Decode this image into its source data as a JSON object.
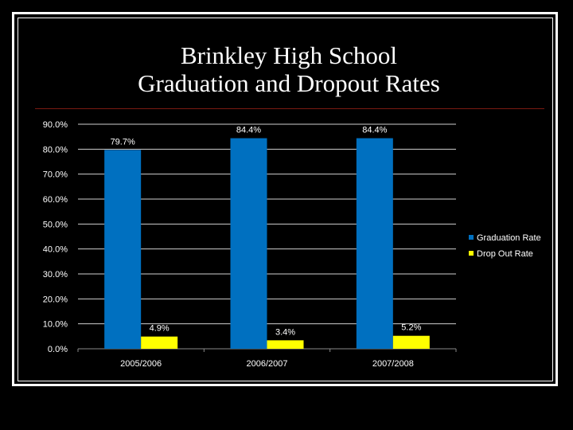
{
  "slide": {
    "title_line1": "Brinkley High School",
    "title_line2": "Graduation and Dropout Rates"
  },
  "chart_data": {
    "type": "bar",
    "title": "",
    "xlabel": "",
    "ylabel": "",
    "categories": [
      "2005/2006",
      "2006/2007",
      "2007/2008"
    ],
    "ylim": [
      0,
      90
    ],
    "yticks": [
      "0.0%",
      "10.0%",
      "20.0%",
      "30.0%",
      "40.0%",
      "50.0%",
      "60.0%",
      "70.0%",
      "80.0%",
      "90.0%"
    ],
    "grid": true,
    "legend_position": "right",
    "series": [
      {
        "name": "Graduation Rate",
        "color": "#0070c0",
        "values": [
          79.7,
          84.4,
          84.4
        ],
        "labels": [
          "79.7%",
          "84.4%",
          "84.4%"
        ]
      },
      {
        "name": "Drop Out Rate",
        "color": "#ffff00",
        "values": [
          4.9,
          3.4,
          5.2
        ],
        "labels": [
          "4.9%",
          "3.4%",
          "5.2%"
        ]
      }
    ]
  }
}
